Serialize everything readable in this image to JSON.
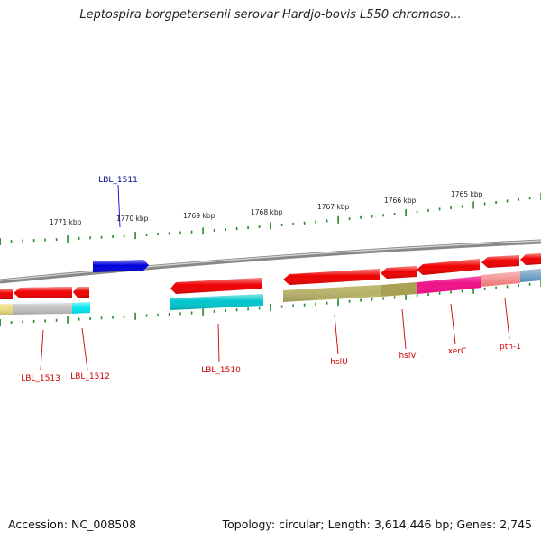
{
  "title": "Leptospira borgpetersenii serovar Hardjo-bovis L550 chromoso...",
  "footer": {
    "accession": "Accession: NC_008508",
    "summary": "Topology: circular; Length: 3,614,446 bp; Genes: 2,745"
  },
  "ruler": {
    "ticks": [
      {
        "label": "1771 kbp"
      },
      {
        "label": "1770 kbp"
      },
      {
        "label": "1769 kbp"
      },
      {
        "label": "1768 kbp"
      },
      {
        "label": "1767 kbp"
      },
      {
        "label": "1766 kbp"
      },
      {
        "label": "1765 kbp"
      }
    ]
  },
  "genes": [
    {
      "id": "LBL_1511",
      "strand": "forward",
      "color": "#0000dd",
      "label_color": "#00008b"
    },
    {
      "id": "LBL_1513",
      "strand": "reverse",
      "color": "#ee0000",
      "band_color": "#c0c0c0",
      "label_color": "#cc0000"
    },
    {
      "id": "LBL_1512",
      "strand": "reverse",
      "color": "#ee0000",
      "band_color": "#00e5ee",
      "label_color": "#cc0000"
    },
    {
      "id": "LBL_1510",
      "strand": "reverse",
      "color": "#ee0000",
      "band_color": "#00c5cd",
      "label_color": "#cc0000"
    },
    {
      "id": "hslU",
      "strand": "reverse",
      "color": "#ee0000",
      "band_color": "#bdb76b",
      "label_color": "#cc0000"
    },
    {
      "id": "hslV",
      "strand": "reverse",
      "color": "#ee0000",
      "band_color": "#a8a050",
      "label_color": "#cc0000"
    },
    {
      "id": "xerC",
      "strand": "reverse",
      "color": "#ee0000",
      "band_color": "#ee1289",
      "label_color": "#cc0000"
    },
    {
      "id": "pth-1",
      "strand": "reverse",
      "color": "#ee0000",
      "band_color": "#f08080",
      "label_color": "#cc0000"
    }
  ],
  "colors": {
    "backbone": "#888888",
    "tick": "#228b22"
  }
}
